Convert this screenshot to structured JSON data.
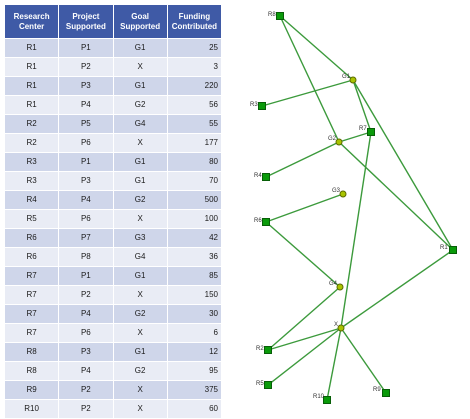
{
  "table": {
    "headers": [
      "Research\nCenter",
      "Project\nSupported",
      "Goal\nSupported",
      "Funding\nContributed"
    ],
    "rows": [
      [
        "R1",
        "P1",
        "G1",
        "25"
      ],
      [
        "R1",
        "P2",
        "X",
        "3"
      ],
      [
        "R1",
        "P3",
        "G1",
        "220"
      ],
      [
        "R1",
        "P4",
        "G2",
        "56"
      ],
      [
        "R2",
        "P5",
        "G4",
        "55"
      ],
      [
        "R2",
        "P6",
        "X",
        "177"
      ],
      [
        "R3",
        "P1",
        "G1",
        "80"
      ],
      [
        "R3",
        "P3",
        "G1",
        "70"
      ],
      [
        "R4",
        "P4",
        "G2",
        "500"
      ],
      [
        "R5",
        "P6",
        "X",
        "100"
      ],
      [
        "R6",
        "P7",
        "G3",
        "42"
      ],
      [
        "R6",
        "P8",
        "G4",
        "36"
      ],
      [
        "R7",
        "P1",
        "G1",
        "85"
      ],
      [
        "R7",
        "P2",
        "X",
        "150"
      ],
      [
        "R7",
        "P4",
        "G2",
        "30"
      ],
      [
        "R7",
        "P6",
        "X",
        "6"
      ],
      [
        "R8",
        "P3",
        "G1",
        "12"
      ],
      [
        "R8",
        "P4",
        "G2",
        "95"
      ],
      [
        "R9",
        "P2",
        "X",
        "375"
      ],
      [
        "R10",
        "P2",
        "X",
        "60"
      ]
    ]
  },
  "graph": {
    "colors": {
      "edge": "#3c9a3c",
      "center_node": "#0a9a0a",
      "goal_node": "#a9c400",
      "header": "#3f5aa6"
    },
    "nodes": [
      {
        "id": "R8",
        "label": "R8",
        "kind": "center"
      },
      {
        "id": "R3",
        "label": "R3",
        "kind": "center"
      },
      {
        "id": "R7",
        "label": "R7",
        "kind": "center"
      },
      {
        "id": "R4",
        "label": "R4",
        "kind": "center"
      },
      {
        "id": "R6",
        "label": "R6",
        "kind": "center"
      },
      {
        "id": "R1",
        "label": "R1",
        "kind": "center"
      },
      {
        "id": "R2",
        "label": "R2",
        "kind": "center"
      },
      {
        "id": "R5",
        "label": "R5",
        "kind": "center"
      },
      {
        "id": "R10",
        "label": "R10",
        "kind": "center"
      },
      {
        "id": "R9",
        "label": "R9",
        "kind": "center"
      },
      {
        "id": "G1",
        "label": "G1",
        "kind": "goal"
      },
      {
        "id": "G2",
        "label": "G2",
        "kind": "goal"
      },
      {
        "id": "G3",
        "label": "G3",
        "kind": "goal"
      },
      {
        "id": "G4",
        "label": "G4",
        "kind": "goal"
      },
      {
        "id": "X",
        "label": "X",
        "kind": "goal"
      }
    ],
    "edges": [
      [
        "R8",
        "G1"
      ],
      [
        "R8",
        "G2"
      ],
      [
        "R3",
        "G1"
      ],
      [
        "R1",
        "G1"
      ],
      [
        "R1",
        "G2"
      ],
      [
        "R1",
        "X"
      ],
      [
        "R7",
        "G1"
      ],
      [
        "R7",
        "G2"
      ],
      [
        "R7",
        "X"
      ],
      [
        "R4",
        "G2"
      ],
      [
        "R6",
        "G3"
      ],
      [
        "R6",
        "G4"
      ],
      [
        "R2",
        "G4"
      ],
      [
        "R2",
        "X"
      ],
      [
        "R5",
        "X"
      ],
      [
        "R9",
        "X"
      ],
      [
        "R10",
        "X"
      ]
    ]
  }
}
